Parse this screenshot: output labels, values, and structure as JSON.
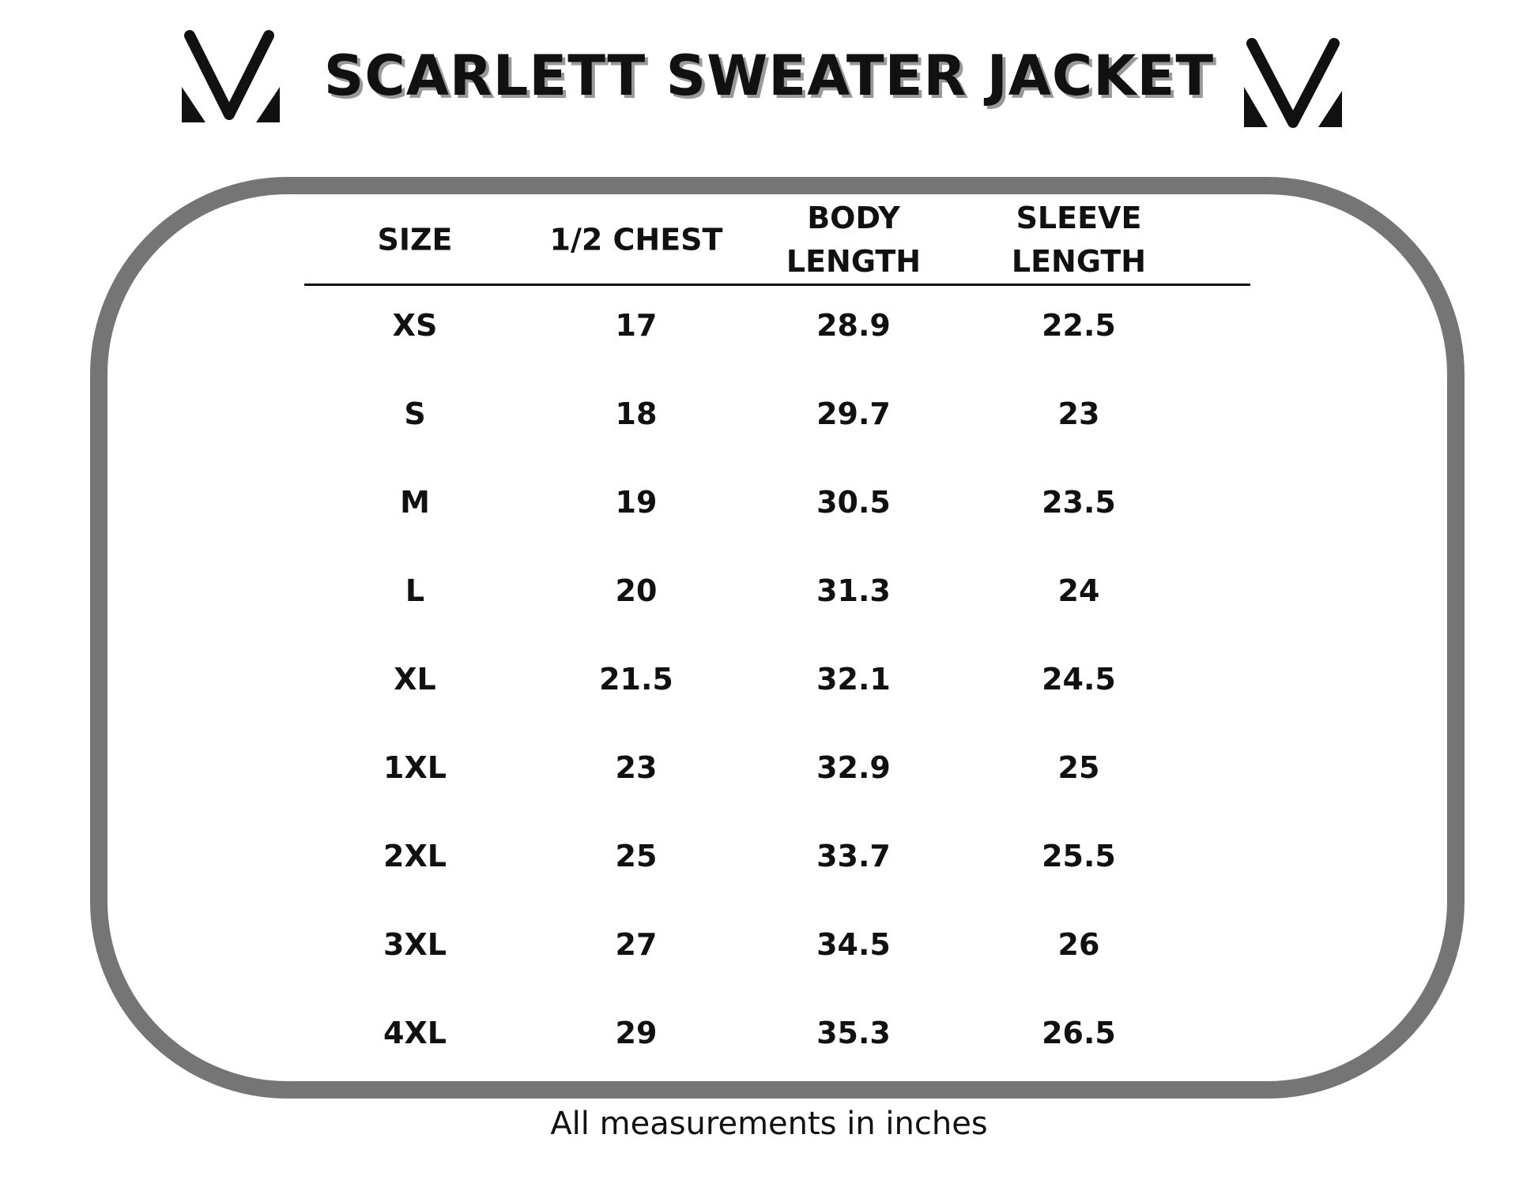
{
  "title": "SCARLETT SWEATER JACKET",
  "table": {
    "headers": [
      "SIZE",
      "1/2 CHEST",
      "BODY LENGTH",
      "SLEEVE LENGTH"
    ],
    "rows": [
      [
        "XS",
        "17",
        "28.9",
        "22.5"
      ],
      [
        "S",
        "18",
        "29.7",
        "23"
      ],
      [
        "M",
        "19",
        "30.5",
        "23.5"
      ],
      [
        "L",
        "20",
        "31.3",
        "24"
      ],
      [
        "XL",
        "21.5",
        "32.1",
        "24.5"
      ],
      [
        "1XL",
        "23",
        "32.9",
        "25"
      ],
      [
        "2XL",
        "25",
        "33.7",
        "25.5"
      ],
      [
        "3XL",
        "27",
        "34.5",
        "26"
      ],
      [
        "4XL",
        "29",
        "35.3",
        "26.5"
      ]
    ]
  },
  "footnote": "All measurements in inches"
}
